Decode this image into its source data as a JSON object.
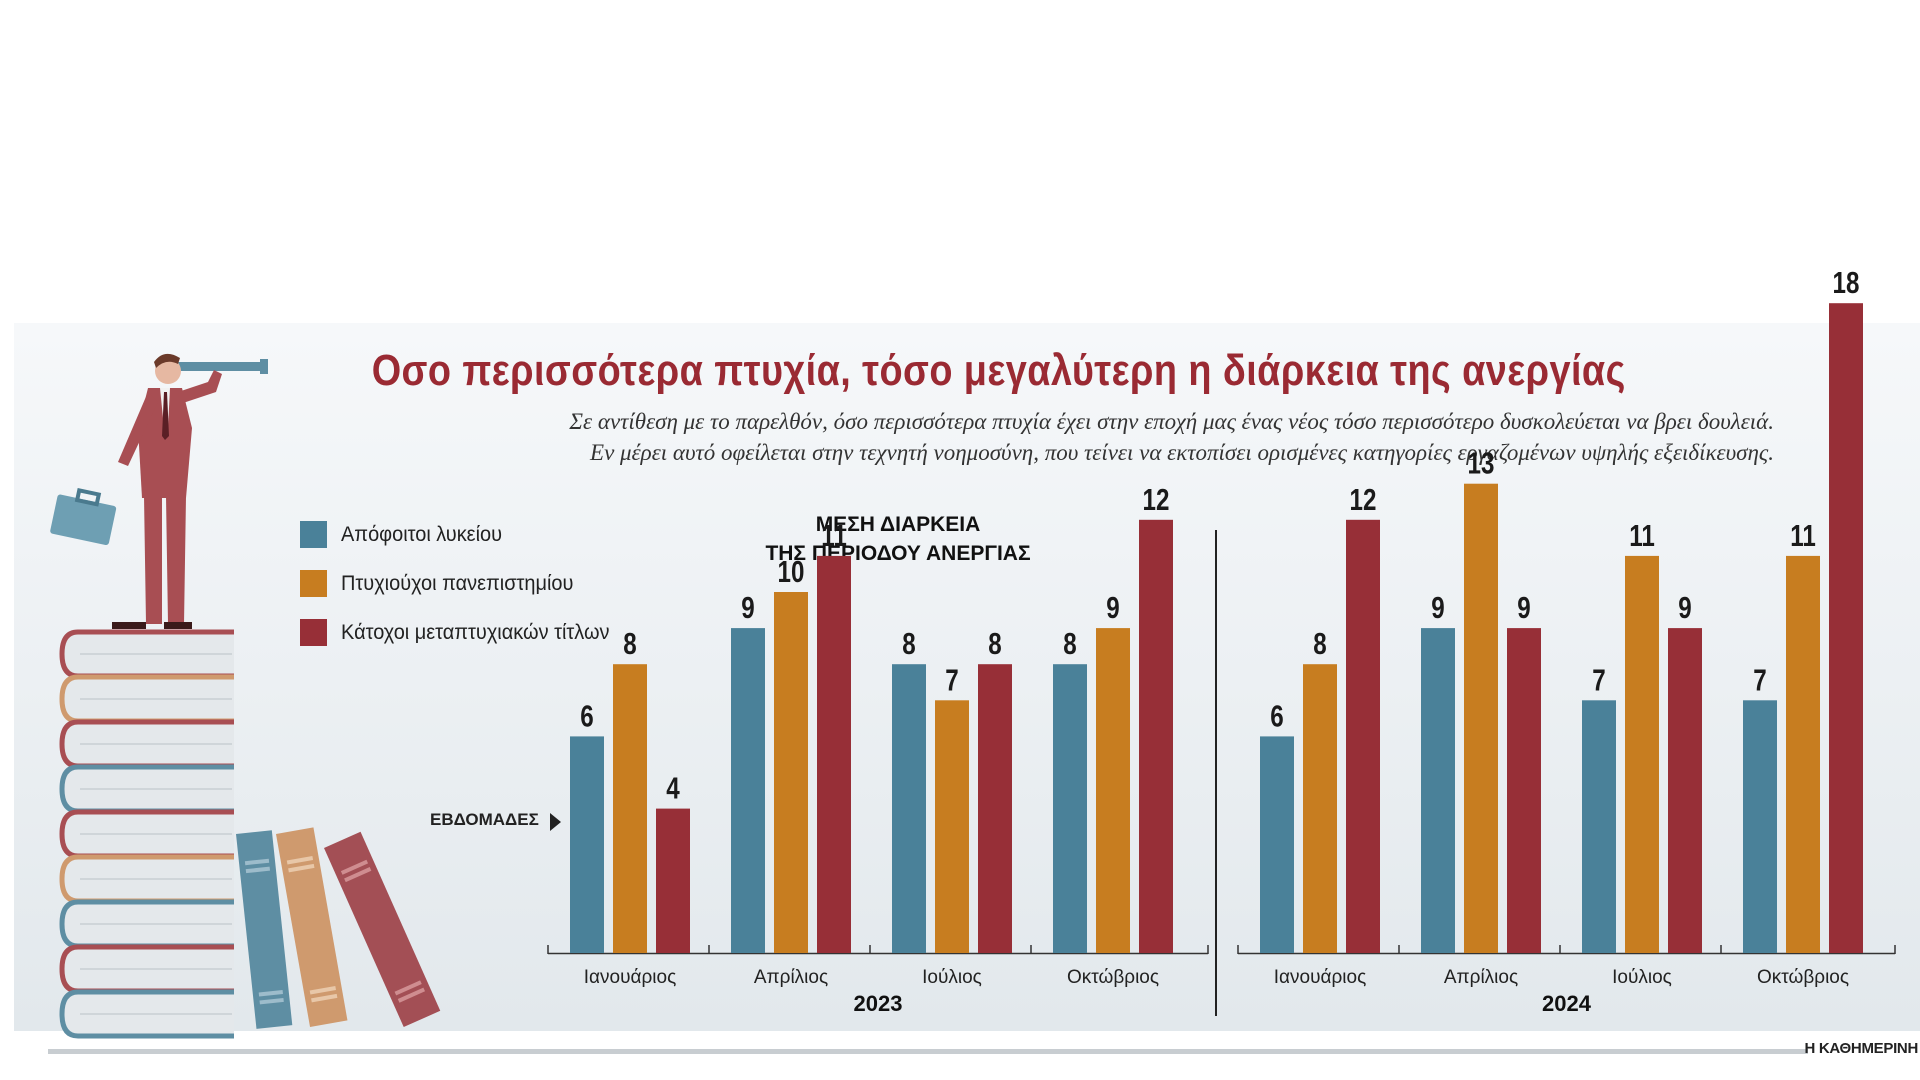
{
  "title": "Οσο περισσότερα πτυχία, τόσο μεγαλύτερη η διάρκεια της ανεργίας",
  "subtitle": [
    "Σε αντίθεση με το παρελθόν, όσο περισσότερα πτυχία έχει στην εποχή μας ένας νέος τόσο περισσότερο δυσκολεύεται να βρει δουλειά.",
    "Εν μέρει αυτό οφείλεται στην τεχνητή νοημοσύνη, που τείνει να εκτοπίσει ορισμένες κατηγορίες εργαζομένων υψηλής εξειδίκευσης."
  ],
  "chart_title": [
    "ΜΕΣΗ ΔΙΑΡΚΕΙΑ",
    "ΤΗΣ ΠΕΡΙΟΔΟΥ ΑΝΕΡΓΙΑΣ"
  ],
  "unit_label": "ΕΒΔΟΜΑΔΕΣ",
  "source": "Η ΚΑΘΗΜΕΡΙΝΗ",
  "colors": {
    "series1": "#4a8199",
    "series2": "#c77d20",
    "series3": "#972f37"
  },
  "chart_data": {
    "type": "bar",
    "title": "ΜΕΣΗ ΔΙΑΡΚΕΙΑ ΤΗΣ ΠΕΡΙΟΔΟΥ ΑΝΕΡΓΙΑΣ",
    "ylabel": "ΕΒΔΟΜΑΔΕΣ",
    "ylim": [
      0,
      18
    ],
    "legend_position": "left",
    "series_names": [
      "Απόφοιτοι λυκείου",
      "Πτυχιούχοι πανεπιστημίου",
      "Κάτοχοι μεταπτυχιακών τίτλων"
    ],
    "groups": [
      {
        "year": "2023",
        "categories": [
          "Ιανουάριος",
          "Απρίλιος",
          "Ιούλιος",
          "Οκτώβριος"
        ],
        "series": [
          {
            "name": "Απόφοιτοι λυκείου",
            "values": [
              6,
              9,
              8,
              8
            ]
          },
          {
            "name": "Πτυχιούχοι πανεπιστημίου",
            "values": [
              8,
              10,
              7,
              9
            ]
          },
          {
            "name": "Κάτοχοι μεταπτυχιακών τίτλων",
            "values": [
              4,
              11,
              8,
              12
            ]
          }
        ]
      },
      {
        "year": "2024",
        "categories": [
          "Ιανουάριος",
          "Απρίλιος",
          "Ιούλιος",
          "Οκτώβριος"
        ],
        "series": [
          {
            "name": "Απόφοιτοι λυκείου",
            "values": [
              6,
              9,
              7,
              7
            ]
          },
          {
            "name": "Πτυχιούχοι πανεπιστημίου",
            "values": [
              8,
              13,
              11,
              11
            ]
          },
          {
            "name": "Κάτοχοι μεταπτυχιακών τίτλων",
            "values": [
              12,
              9,
              9,
              18
            ]
          }
        ]
      }
    ]
  }
}
